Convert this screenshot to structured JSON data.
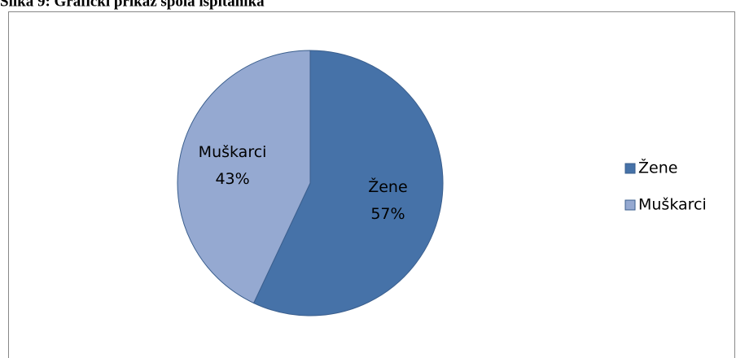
{
  "chart_data": {
    "type": "pie",
    "title": "Slika 9: Grafički prikaz spola ispitanika",
    "categories": [
      "Žene",
      "Muškarci"
    ],
    "values": [
      57,
      43
    ],
    "value_labels": [
      "57%",
      "43%"
    ],
    "colors": [
      "#4672a8",
      "#95a9d1"
    ],
    "legend": "right"
  }
}
